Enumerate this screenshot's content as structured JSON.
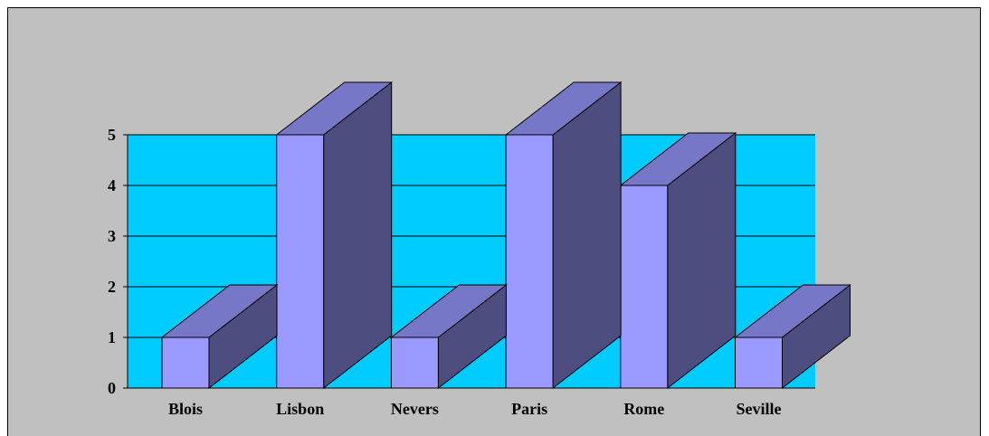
{
  "chart_data": {
    "type": "bar",
    "three_d": true,
    "categories": [
      "Blois",
      "Lisbon",
      "Nevers",
      "Paris",
      "Rome",
      "Seville"
    ],
    "values": [
      1,
      5,
      1,
      5,
      4,
      1
    ],
    "title": "",
    "xlabel": "",
    "ylabel": "",
    "ylim": [
      0,
      5
    ],
    "yticks": [
      "0",
      "1",
      "2",
      "3",
      "4",
      "5"
    ],
    "grid": true,
    "legend": "none"
  },
  "colors": {
    "chart_area": "#c0c0c0",
    "plot_area": "#00ccff",
    "bar_front": "#9999ff",
    "bar_top": "#7777c8",
    "bar_side": "#4d4d80",
    "outline": "#000000"
  }
}
